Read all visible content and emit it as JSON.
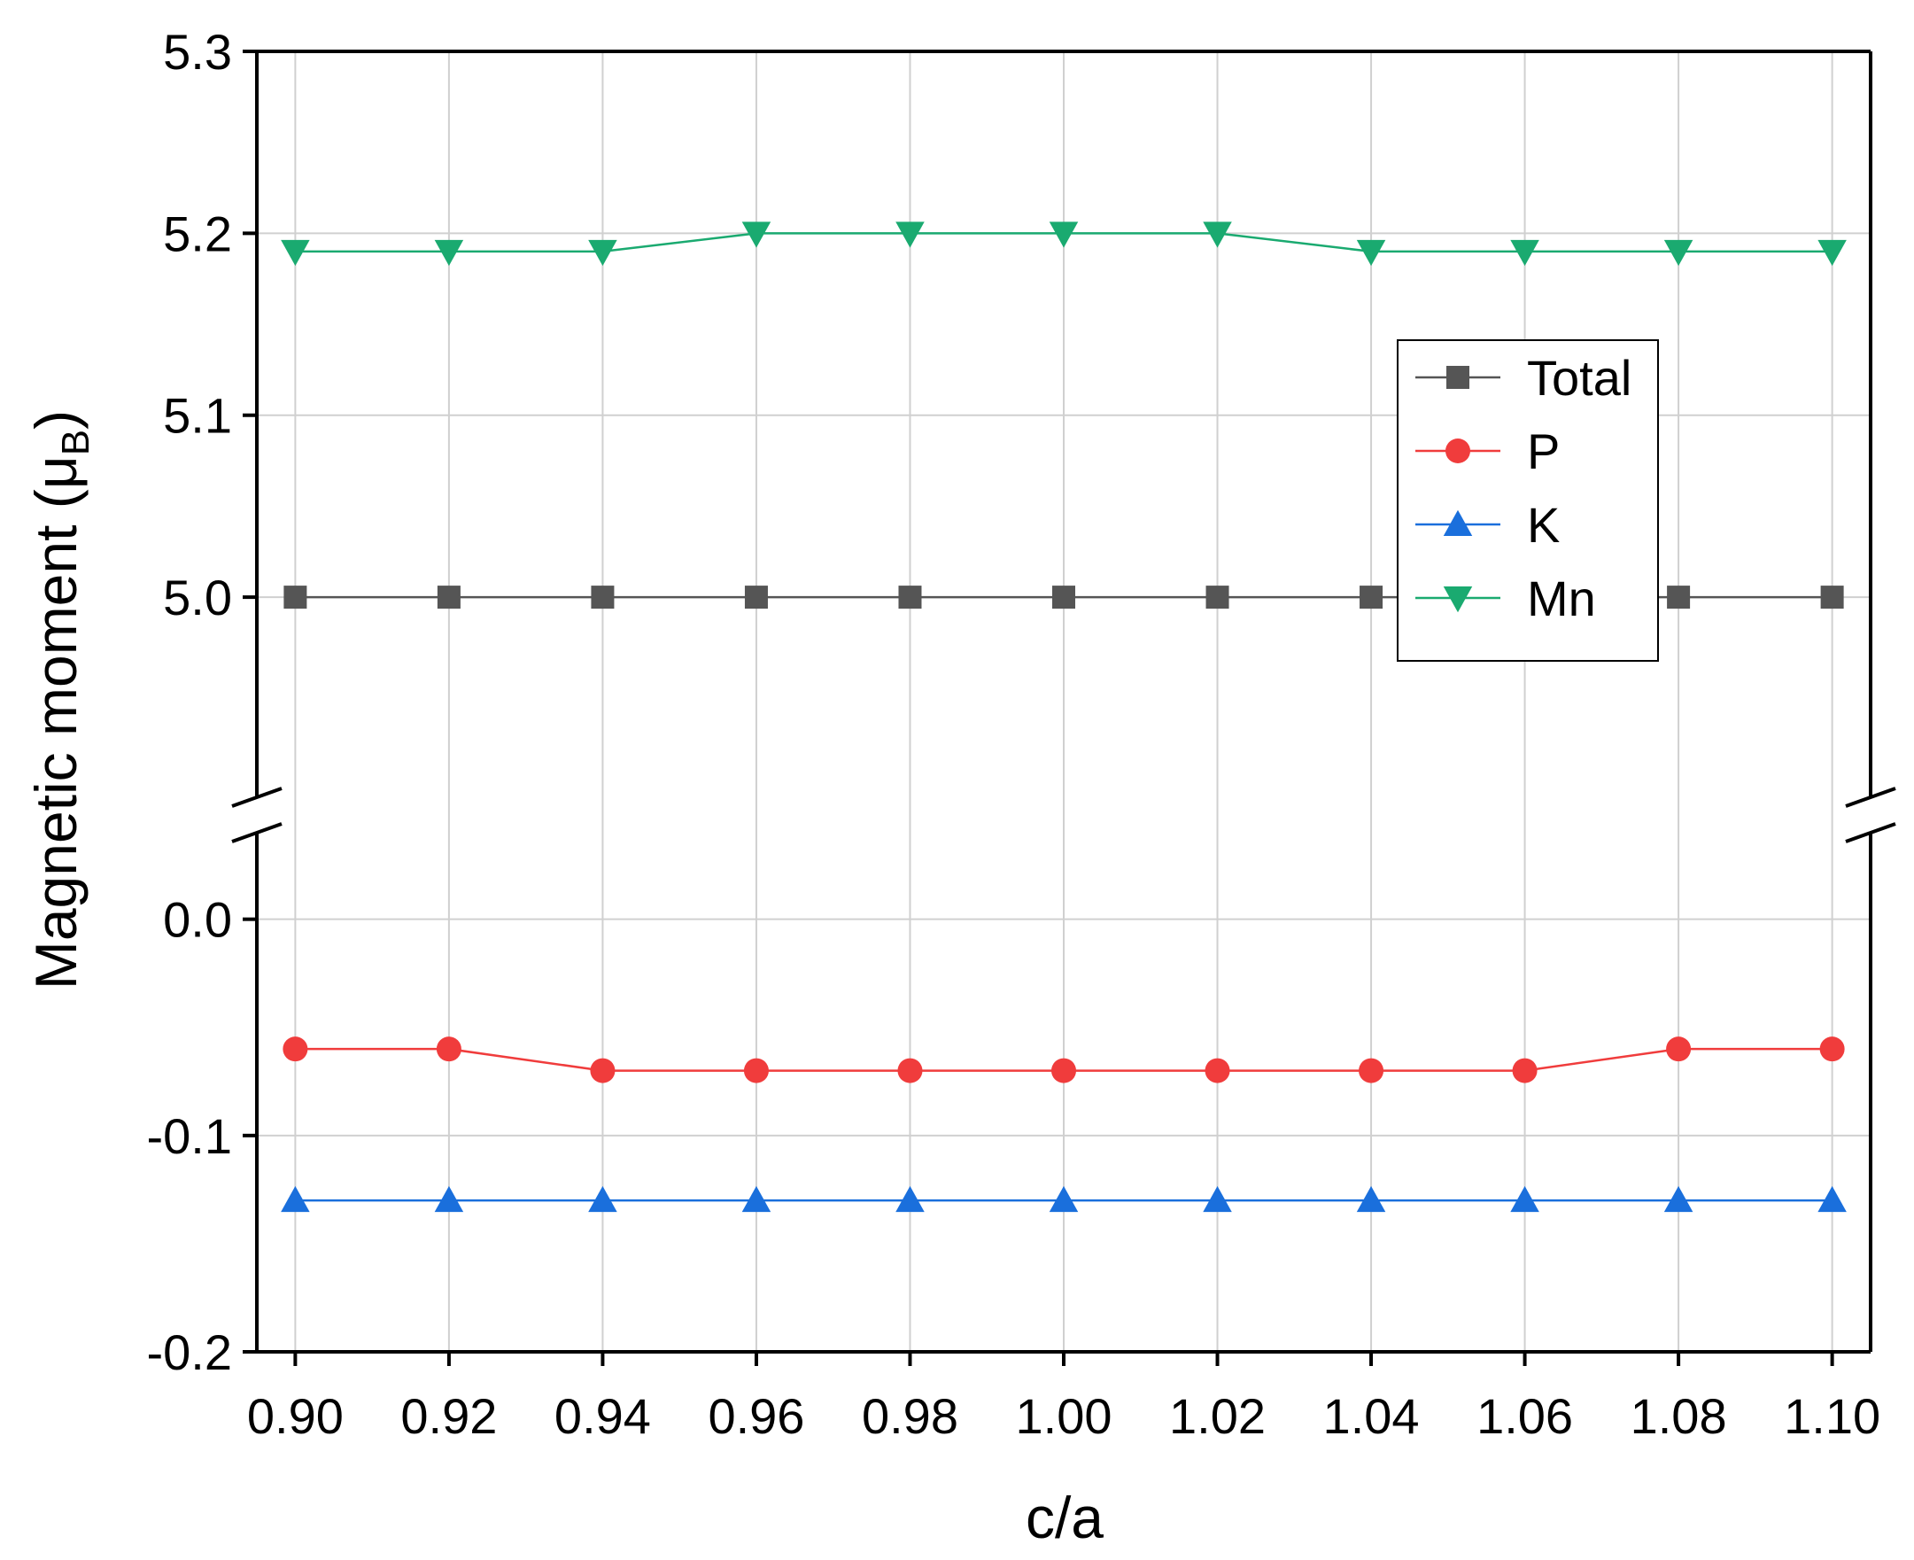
{
  "chart_data": {
    "type": "line",
    "xlabel": "c/a",
    "ylabel": "Magnetic moment (μ",
    "ylabel_subscript": "B",
    "ylabel_close": ")",
    "x": [
      0.9,
      0.92,
      0.94,
      0.96,
      0.98,
      1.0,
      1.02,
      1.04,
      1.06,
      1.08,
      1.1
    ],
    "x_tick_labels": [
      "0.90",
      "0.92",
      "0.94",
      "0.96",
      "0.98",
      "1.00",
      "1.02",
      "1.04",
      "1.06",
      "1.08",
      "1.10"
    ],
    "xlim": [
      0.895,
      1.105
    ],
    "y_axis_break": true,
    "ylim_upper_segment": [
      4.89,
      5.3
    ],
    "ylim_lower_segment": [
      -0.2,
      0.04
    ],
    "y_tick_labels_upper": [
      "5.0",
      "5.1",
      "5.2",
      "5.3"
    ],
    "y_ticks_upper": [
      5.0,
      5.1,
      5.2,
      5.3
    ],
    "y_tick_labels_lower": [
      "-0.2",
      "-0.1",
      "0.0"
    ],
    "y_ticks_lower": [
      -0.2,
      -0.1,
      0.0
    ],
    "grid": true,
    "legend_position": "top-right",
    "series": [
      {
        "name": "Total",
        "marker": "square",
        "color": "#555555",
        "values": [
          5.0,
          5.0,
          5.0,
          5.0,
          5.0,
          5.0,
          5.0,
          5.0,
          5.0,
          5.0,
          5.0
        ]
      },
      {
        "name": "P",
        "marker": "circle",
        "color": "#f03c3c",
        "values": [
          -0.06,
          -0.06,
          -0.07,
          -0.07,
          -0.07,
          -0.07,
          -0.07,
          -0.07,
          -0.07,
          -0.06,
          -0.06
        ]
      },
      {
        "name": "K",
        "marker": "triangle-up",
        "color": "#1a6fdc",
        "values": [
          -0.13,
          -0.13,
          -0.13,
          -0.13,
          -0.13,
          -0.13,
          -0.13,
          -0.13,
          -0.13,
          -0.13,
          -0.13
        ]
      },
      {
        "name": "Mn",
        "marker": "triangle-down",
        "color": "#1aaa70",
        "values": [
          5.19,
          5.19,
          5.19,
          5.2,
          5.2,
          5.2,
          5.2,
          5.19,
          5.19,
          5.19,
          5.19
        ]
      }
    ]
  }
}
